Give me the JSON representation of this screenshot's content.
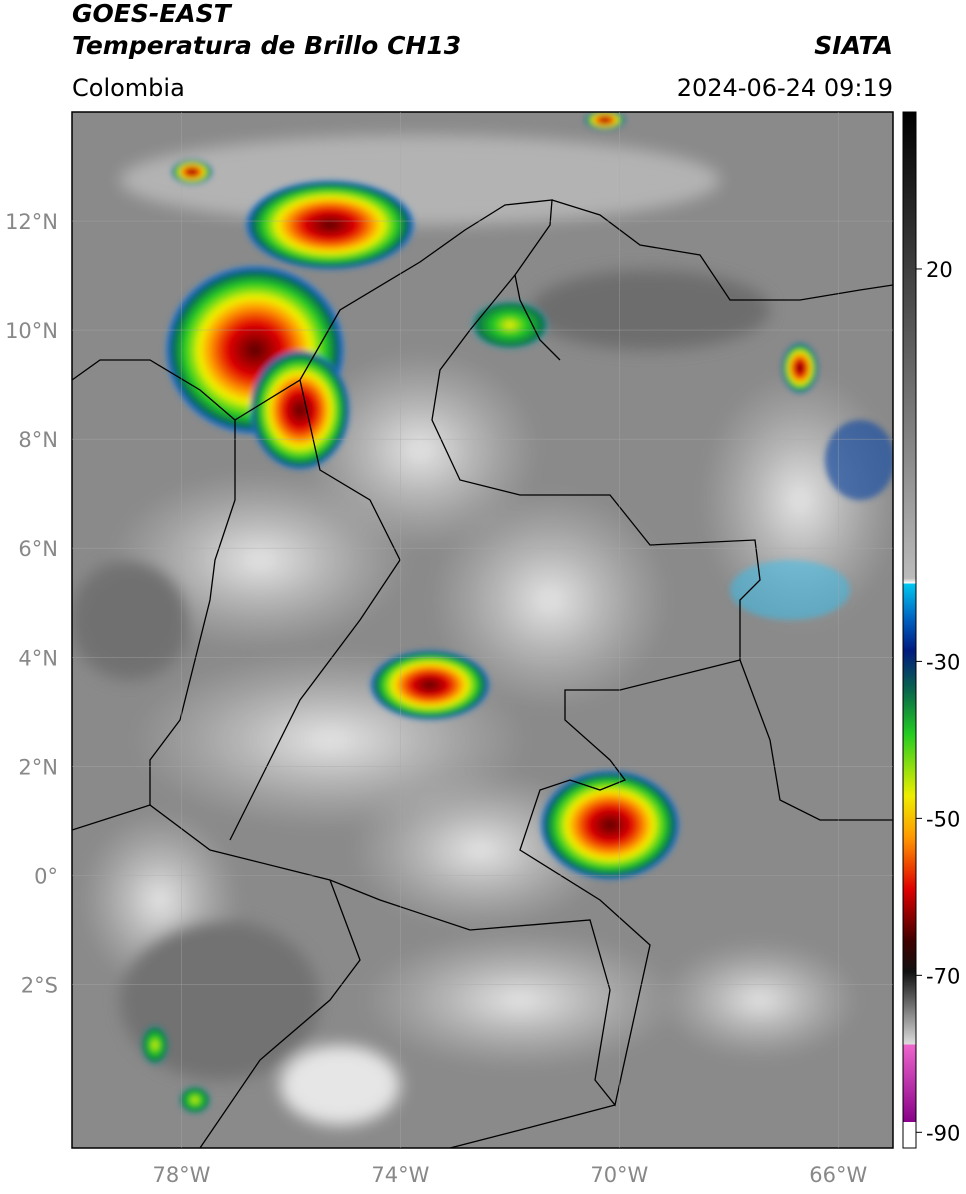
{
  "header": {
    "title": "GOES-EAST",
    "subtitle": "Temperatura de Brillo CH13",
    "source": "SIATA",
    "region": "Colombia",
    "datetime": "2024-06-24 09:19"
  },
  "map": {
    "xlim": [
      -80,
      -65
    ],
    "ylim": [
      -5,
      14
    ],
    "xticks": [
      {
        "value": -78,
        "label": "78°W"
      },
      {
        "value": -74,
        "label": "74°W"
      },
      {
        "value": -70,
        "label": "70°W"
      },
      {
        "value": -66,
        "label": "66°W"
      }
    ],
    "yticks": [
      {
        "value": 12,
        "label": "12°N"
      },
      {
        "value": 10,
        "label": "10°N"
      },
      {
        "value": 8,
        "label": "8°N"
      },
      {
        "value": 6,
        "label": "6°N"
      },
      {
        "value": 4,
        "label": "4°N"
      },
      {
        "value": 2,
        "label": "2°N"
      },
      {
        "value": 0,
        "label": "0°"
      },
      {
        "value": -2,
        "label": "2°S"
      }
    ],
    "grid": true
  },
  "colorbar": {
    "lim": [
      -92,
      40
    ],
    "ticks": [
      20,
      -30,
      -50,
      -70,
      -90
    ]
  }
}
